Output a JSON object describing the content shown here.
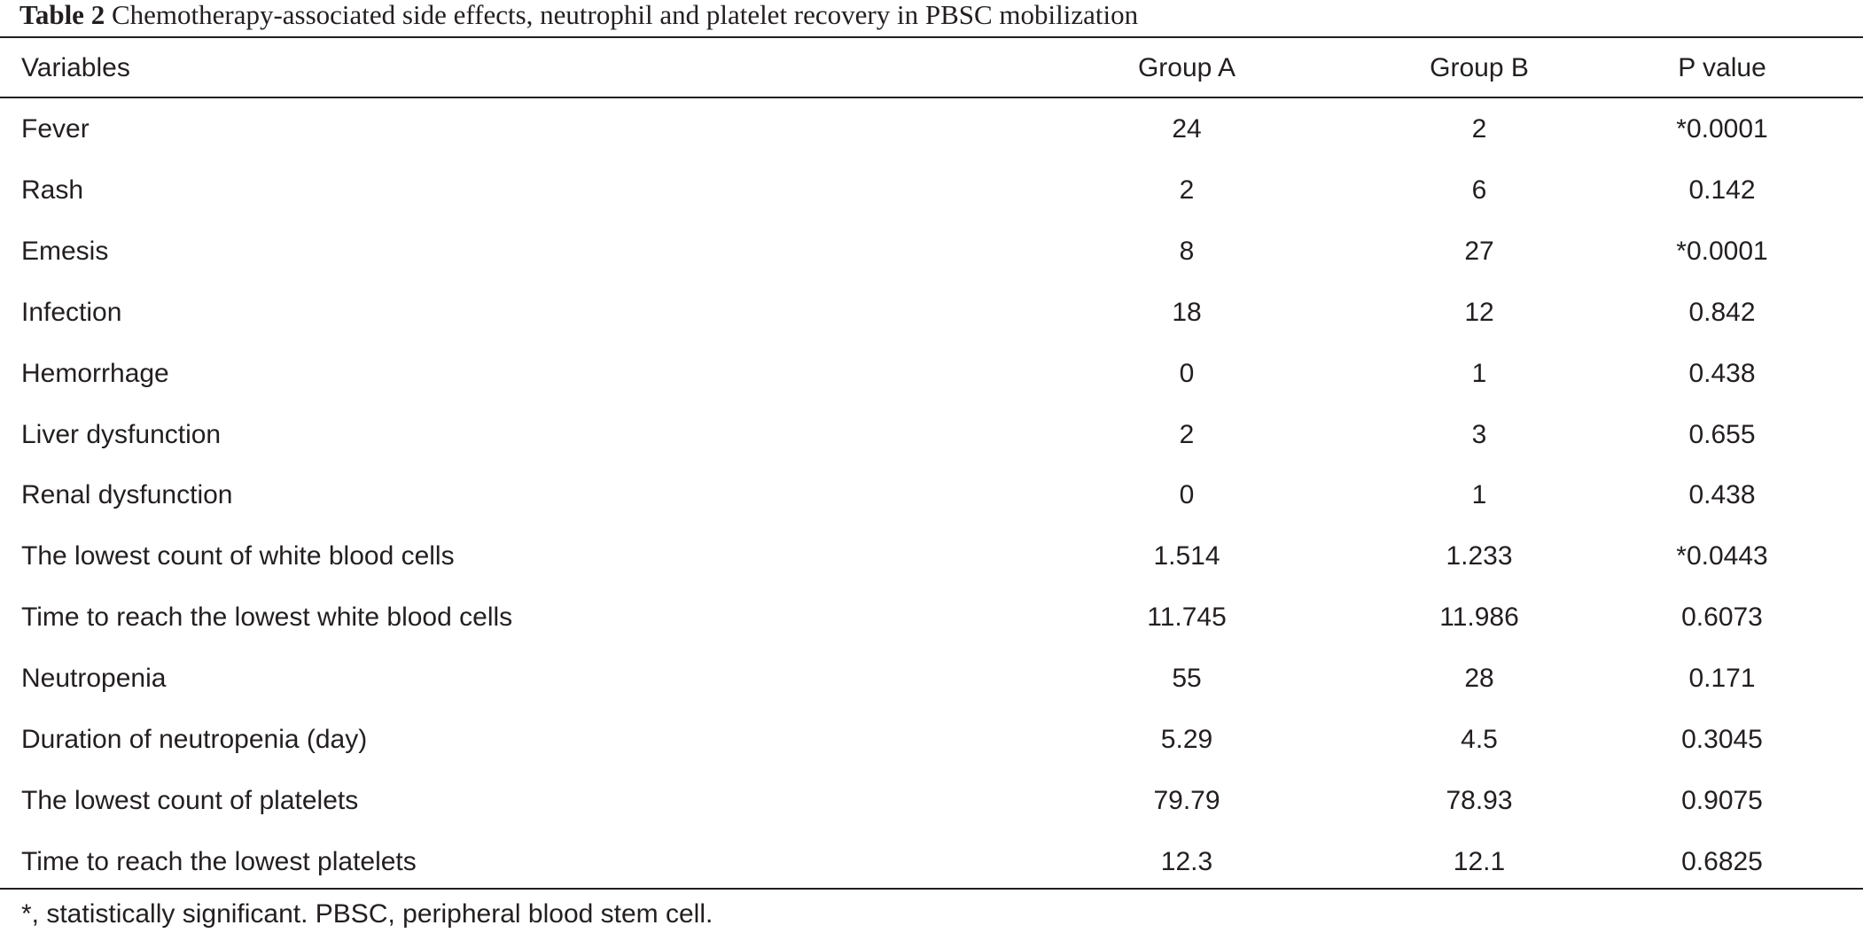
{
  "caption": {
    "label": "Table 2",
    "text": "Chemotherapy-associated side effects, neutrophil and platelet recovery in PBSC mobilization"
  },
  "table": {
    "headers": {
      "variables": "Variables",
      "group_a": "Group A",
      "group_b": "Group B",
      "p_value": "P value"
    },
    "rows": [
      {
        "variable": "Fever",
        "group_a": "24",
        "group_b": "2",
        "p_value": "*0.0001"
      },
      {
        "variable": "Rash",
        "group_a": "2",
        "group_b": "6",
        "p_value": "0.142"
      },
      {
        "variable": "Emesis",
        "group_a": "8",
        "group_b": "27",
        "p_value": "*0.0001"
      },
      {
        "variable": "Infection",
        "group_a": "18",
        "group_b": "12",
        "p_value": "0.842"
      },
      {
        "variable": "Hemorrhage",
        "group_a": "0",
        "group_b": "1",
        "p_value": "0.438"
      },
      {
        "variable": "Liver dysfunction",
        "group_a": "2",
        "group_b": "3",
        "p_value": "0.655"
      },
      {
        "variable": "Renal dysfunction",
        "group_a": "0",
        "group_b": "1",
        "p_value": "0.438"
      },
      {
        "variable": "The lowest count of white blood cells",
        "group_a": "1.514",
        "group_b": "1.233",
        "p_value": "*0.0443"
      },
      {
        "variable": "Time to reach the lowest white blood cells",
        "group_a": "11.745",
        "group_b": "11.986",
        "p_value": "0.6073"
      },
      {
        "variable": "Neutropenia",
        "group_a": "55",
        "group_b": "28",
        "p_value": "0.171"
      },
      {
        "variable": "Duration of neutropenia (day)",
        "group_a": "5.29",
        "group_b": "4.5",
        "p_value": "0.3045"
      },
      {
        "variable": "The lowest count of platelets",
        "group_a": "79.79",
        "group_b": "78.93",
        "p_value": "0.9075"
      },
      {
        "variable": "Time to reach the lowest platelets",
        "group_a": "12.3",
        "group_b": "12.1",
        "p_value": "0.6825"
      }
    ]
  },
  "footnote": "*, statistically significant. PBSC, peripheral blood stem cell."
}
